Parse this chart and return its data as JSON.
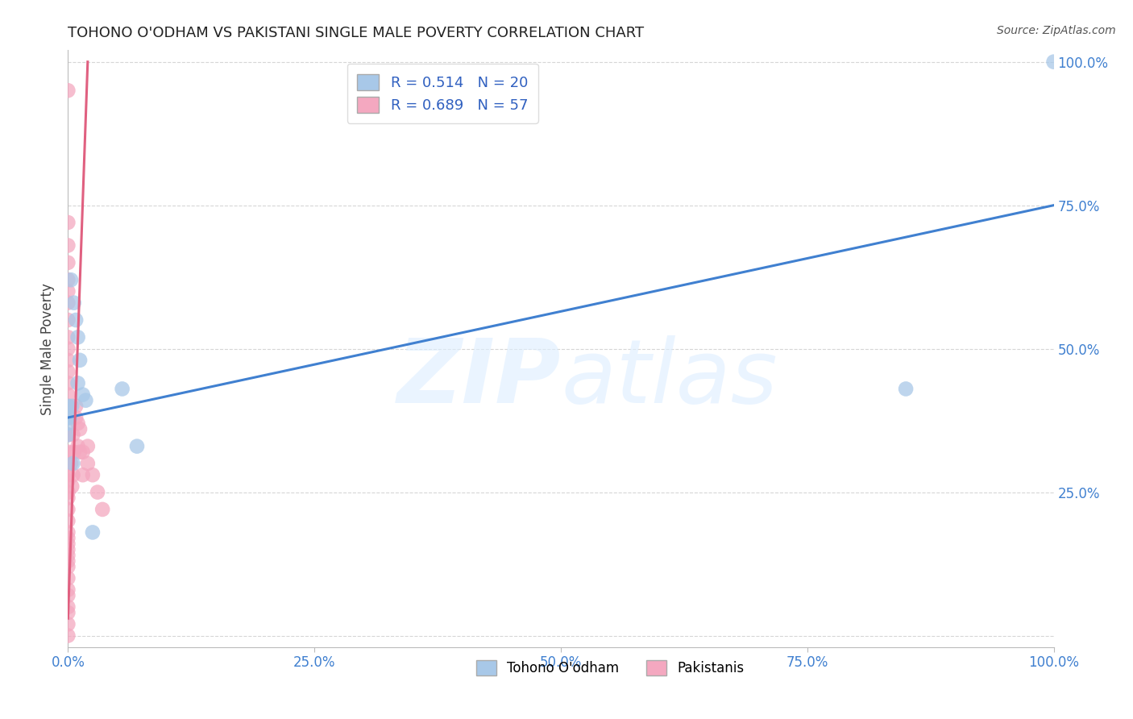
{
  "title": "TOHONO O'ODHAM VS PAKISTANI SINGLE MALE POVERTY CORRELATION CHART",
  "source": "Source: ZipAtlas.com",
  "ylabel": "Single Male Poverty",
  "legend_bottom": [
    "Tohono O'odham",
    "Pakistanis"
  ],
  "blue_R": 0.514,
  "blue_N": 20,
  "pink_R": 0.689,
  "pink_N": 57,
  "blue_color": "#A8C8E8",
  "pink_color": "#F4A8C0",
  "blue_line_color": "#4080D0",
  "pink_line_color": "#E06080",
  "watermark_zip": "ZIP",
  "watermark_atlas": "atlas",
  "xlim": [
    0,
    100
  ],
  "ylim": [
    -2,
    102
  ],
  "background_color": "#FFFFFF",
  "grid_color": "#CCCCCC",
  "blue_scatter_x": [
    0.0,
    0.0,
    0.3,
    0.6,
    0.8,
    1.0,
    1.2,
    1.5,
    1.8,
    2.5,
    5.5,
    7.0,
    85.0,
    100.0,
    0.4,
    1.0,
    0.2,
    0.5,
    0.0,
    0.0
  ],
  "blue_scatter_y": [
    38.0,
    40.0,
    62.0,
    58.0,
    55.0,
    52.0,
    48.0,
    42.0,
    41.0,
    18.0,
    43.0,
    33.0,
    43.0,
    100.0,
    40.0,
    44.0,
    38.0,
    30.0,
    37.0,
    35.0
  ],
  "pink_scatter_x": [
    0.0,
    0.0,
    0.0,
    0.0,
    0.0,
    0.0,
    0.0,
    0.0,
    0.0,
    0.0,
    0.0,
    0.0,
    0.0,
    0.0,
    0.0,
    0.0,
    0.0,
    0.0,
    0.0,
    0.0,
    0.0,
    0.0,
    0.0,
    0.0,
    0.0,
    0.0,
    0.3,
    0.4,
    0.5,
    0.5,
    0.6,
    0.8,
    0.8,
    1.0,
    1.0,
    1.2,
    1.2,
    1.5,
    1.5,
    2.0,
    2.0,
    2.5,
    3.0,
    3.5,
    0.0,
    0.0,
    0.0,
    0.0,
    0.0,
    0.0,
    0.0,
    0.0,
    0.0,
    0.0,
    0.0,
    0.0,
    0.0
  ],
  "pink_scatter_y": [
    0.0,
    2.0,
    4.0,
    5.0,
    7.0,
    8.0,
    10.0,
    12.0,
    13.0,
    14.0,
    15.0,
    16.0,
    17.0,
    18.0,
    20.0,
    22.0,
    24.0,
    25.0,
    27.0,
    28.0,
    30.0,
    32.0,
    35.0,
    38.0,
    40.0,
    42.0,
    30.0,
    26.0,
    35.0,
    28.0,
    32.0,
    38.0,
    40.0,
    33.0,
    37.0,
    32.0,
    36.0,
    28.0,
    32.0,
    30.0,
    33.0,
    28.0,
    25.0,
    22.0,
    44.0,
    46.0,
    48.0,
    50.0,
    52.0,
    55.0,
    58.0,
    60.0,
    62.0,
    65.0,
    68.0,
    72.0,
    95.0
  ],
  "blue_line_x": [
    0,
    100
  ],
  "blue_line_y": [
    38,
    75
  ],
  "pink_line_x": [
    0.0,
    2.0
  ],
  "pink_line_y": [
    3,
    100
  ]
}
